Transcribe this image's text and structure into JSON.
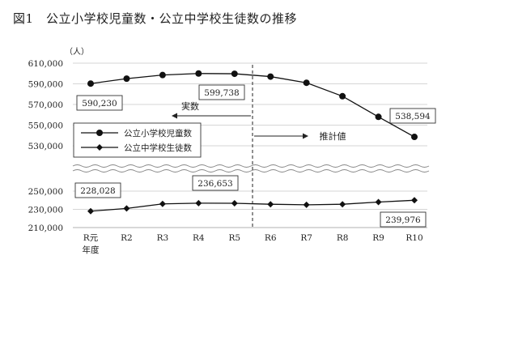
{
  "figure": {
    "title": "図1　公立小学校児童数・公立中学校生徒数の推移"
  },
  "chart_data": {
    "type": "line",
    "unit": "（人）",
    "x": [
      "R元",
      "R2",
      "R3",
      "R4",
      "R5",
      "R6",
      "R7",
      "R8",
      "R9",
      "R10"
    ],
    "x_sublabel": "年度",
    "upper_axis": {
      "ylim": [
        530000,
        610000
      ],
      "ticks": [
        "610,000",
        "590,000",
        "570,000",
        "550,000",
        "530,000"
      ]
    },
    "lower_axis": {
      "ylim": [
        210000,
        250000
      ],
      "ticks": [
        "250,000",
        "230,000",
        "210,000"
      ]
    },
    "series": [
      {
        "name": "公立小学校児童数",
        "marker": "circle",
        "axis": "upper",
        "values": [
          590230,
          595000,
          598500,
          600000,
          599738,
          597000,
          591000,
          578000,
          558000,
          538594
        ]
      },
      {
        "name": "公立中学校生徒数",
        "marker": "diamond",
        "axis": "lower",
        "values": [
          228028,
          231000,
          236000,
          236800,
          236653,
          235600,
          235000,
          235600,
          238000,
          239976
        ]
      }
    ],
    "callouts": [
      {
        "text": "590,230"
      },
      {
        "text": "599,738"
      },
      {
        "text": "538,594"
      },
      {
        "text": "228,028"
      },
      {
        "text": "236,653"
      },
      {
        "text": "239,976"
      }
    ],
    "annotations": {
      "actual": "実数",
      "estimate": "推計値"
    },
    "legend_position": "left",
    "grid": true
  }
}
